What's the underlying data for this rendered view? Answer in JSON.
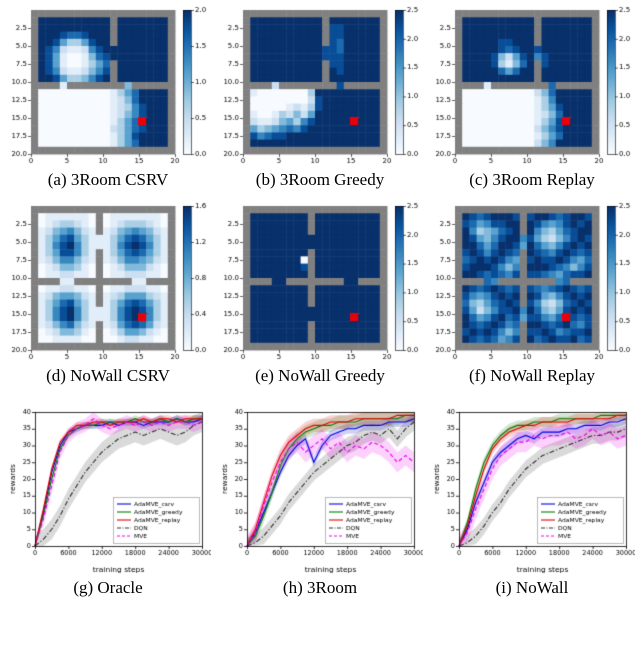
{
  "style": {
    "colormap": "Blues",
    "wall_color": "#808080",
    "goal_color": "#e8000b",
    "accent_blue": "#0000dd",
    "accent_green": "#007f00",
    "accent_red": "#e60000",
    "accent_black": "#303030",
    "accent_magenta": "#ee00ee"
  },
  "chart_data": [
    {
      "id": "a",
      "type": "heatmap",
      "caption": "(a) 3Room CSRV",
      "vmax": 2.0,
      "colorbar_ticks": [
        "2.0",
        "1.5",
        "1.0",
        "0.5",
        "0.0"
      ],
      "x_ticks": [
        0,
        5,
        10,
        15,
        20
      ],
      "y_ticks": [
        "2.5",
        "5.0",
        "7.5",
        "10.0",
        "12.5",
        "15.0",
        "17.5",
        "20.0"
      ],
      "goal_cell": {
        "x": 15,
        "y": 15
      },
      "grid": [
        "####################",
        "#9999999999#9999999#",
        "#9999999999#9999999#",
        "#9998778999#9999999#",
        "#9985335899#9999999#",
        "#986211268999999999#",
        "#985100147899999999#",
        "#9851001357#9999999#",
        "#9862112468#9999999#",
        "#9985334689#9999999#",
        "####1########4######",
        "#000000000013579999#",
        "#000000000012479999#",
        "#000000000012368999#",
        "#000000000012468999#",
        "#00000000001357R999#",
        "#000000000023578999#",
        "#000000000013589999#",
        "#000000000013579999#",
        "####################"
      ]
    },
    {
      "id": "b",
      "type": "heatmap",
      "caption": "(b) 3Room Greedy",
      "vmax": 2.5,
      "colorbar_ticks": [
        "2.5",
        "2.0",
        "1.5",
        "1.0",
        "0.5",
        "0.0"
      ],
      "x_ticks": [
        0,
        5,
        10,
        15,
        20
      ],
      "y_ticks": [
        "2.5",
        "5.0",
        "7.5",
        "10.0",
        "12.5",
        "15.0",
        "17.5",
        "20.0"
      ],
      "goal_cell": {
        "x": 15,
        "y": 15
      },
      "grid": [
        "####################",
        "#9999999999#9999999#",
        "#9999999999#8899999#",
        "#9999999999#8899999#",
        "#9999999999#8799999#",
        "#999999999988799999#",
        "#999999999988899999#",
        "#9999999999#8899999#",
        "#9999999999#9899999#",
        "#9999999999#9999999#",
        "####2########8######",
        "#100000003999999999#",
        "#000000002899999999#",
        "#000001213899999999#",
        "#100132425999999999#",
        "#21124536899999R999#",
        "#534567689999999999#",
        "#867889999999999999#",
        "#999999999999999999#",
        "####################"
      ]
    },
    {
      "id": "c",
      "type": "heatmap",
      "caption": "(c) 3Room Replay",
      "vmax": 2.5,
      "colorbar_ticks": [
        "2.5",
        "2.0",
        "1.5",
        "1.0",
        "0.5",
        "0.0"
      ],
      "x_ticks": [
        0,
        5,
        10,
        15,
        20
      ],
      "y_ticks": [
        "2.5",
        "5.0",
        "7.5",
        "10.0",
        "12.5",
        "15.0",
        "17.5",
        "20.0"
      ],
      "goal_cell": {
        "x": 15,
        "y": 15
      },
      "grid": [
        "####################",
        "#9999999999#9999999#",
        "#9999999999#9999999#",
        "#9999999999#9999999#",
        "#9999988999#9999999#",
        "#999998789989999999#",
        "#999984258968999999#",
        "#9999831479#8999999#",
        "#9999975799#9999999#",
        "#9999999999#9999999#",
        "####1########7######",
        "#000000000024799999#",
        "#000000000013699999#",
        "#000000000013589999#",
        "#000000000012479999#",
        "#00000000001358R999#",
        "#000000000024689999#",
        "#000000000013579999#",
        "#000000000024699999#",
        "####################"
      ]
    },
    {
      "id": "d",
      "type": "heatmap",
      "caption": "(d) NoWall CSRV",
      "vmax": 1.6,
      "colorbar_ticks": [
        "1.6",
        "1.2",
        "0.8",
        "0.4",
        "0.0"
      ],
      "x_ticks": [
        0,
        5,
        10,
        15,
        20
      ],
      "y_ticks": [
        "2.5",
        "5.0",
        "7.5",
        "10.0",
        "12.5",
        "15.0",
        "17.5",
        "20.0"
      ],
      "goal_cell": {
        "x": 15,
        "y": 15
      },
      "grid": [
        "####################",
        "#01111110#011111110#",
        "#01233210#012333210#",
        "#12456421#124565421#",
        "#135785311135787531#",
        "#136896311136898631#",
        "#13588631#135787531#",
        "#12466421#124665421#",
        "#01244310#012444210#",
        "#01122110#011222110#",
        "####11########11####",
        "#01122110#011222110#",
        "#12455421#123555321#",
        "#13578531#135787531#",
        "#136896311136898631#",
        "#13689631113689R631#",
        "#12467421#125787521#",
        "#01244310#013554210#",
        "#00111100#001221100#",
        "####################"
      ]
    },
    {
      "id": "e",
      "type": "heatmap",
      "caption": "(e) NoWall Greedy",
      "vmax": 2.5,
      "colorbar_ticks": [
        "2.5",
        "2.0",
        "1.5",
        "1.0",
        "0.5",
        "0.0"
      ],
      "x_ticks": [
        0,
        5,
        10,
        15,
        20
      ],
      "y_ticks": [
        "2.5",
        "5.0",
        "7.5",
        "10.0",
        "12.5",
        "15.0",
        "17.5",
        "20.0"
      ],
      "goal_cell": {
        "x": 15,
        "y": 15
      },
      "grid": [
        "####################",
        "#99999999#999999999#",
        "#99999999#999999999#",
        "#99999999#999999999#",
        "#999999999999999999#",
        "#999999999999999999#",
        "#99999999#999999999#",
        "#99999990#999999999#",
        "#99999998#999999999#",
        "#99999999#999999999#",
        "####99########99####",
        "#99999999#999999999#",
        "#99999999#999999999#",
        "#99999999#999999999#",
        "#999999999999999999#",
        "#99999999999999R999#",
        "#99999999#999999999#",
        "#99999999#999999999#",
        "#99999999#999999999#",
        "####################"
      ]
    },
    {
      "id": "f",
      "type": "heatmap",
      "caption": "(f) NoWall Replay",
      "vmax": 2.5,
      "colorbar_ticks": [
        "2.5",
        "2.0",
        "1.5",
        "1.0",
        "0.5",
        "0.0"
      ],
      "x_ticks": [
        0,
        5,
        10,
        15,
        20
      ],
      "y_ticks": [
        "2.5",
        "5.0",
        "7.5",
        "10.0",
        "12.5",
        "15.0",
        "17.5",
        "20.0"
      ],
      "goal_cell": {
        "x": 15,
        "y": 15
      },
      "grid": [
        "####################",
        "#98789998#899878998#",
        "#87568899#986568989#",
        "#96345789#964357899#",
        "#985468996853246898#",
        "#997579985975468989#",
        "#89868987#987689878#",
        "#78989865#898898657#",
        "#89998646#999876468#",
        "#99878768#887657889#",
        "####76########67####",
        "#98789878#876789878#",
        "#86568989#985468989#",
        "#74357898#863247898#",
        "#852468896974358989#",
        "#97568978588657R878#",
        "#98789867#998789768#",
        "#89898646#889867889#",
        "#98787568#978988978#",
        "####################"
      ]
    },
    {
      "id": "g",
      "type": "line",
      "caption": "(g) Oracle",
      "xlabel": "training steps",
      "ylabel": "rewards",
      "xlim": [
        0,
        30000
      ],
      "ylim": [
        0,
        40
      ],
      "x_ticks": [
        0,
        6000,
        12000,
        18000,
        24000,
        30000
      ],
      "y_ticks": [
        0,
        5,
        10,
        15,
        20,
        25,
        30,
        35,
        40
      ],
      "x": [
        0,
        1500,
        3000,
        4500,
        6000,
        7500,
        9000,
        10500,
        12000,
        13500,
        15000,
        16500,
        18000,
        19500,
        21000,
        22500,
        24000,
        25500,
        27000,
        28500,
        30000
      ],
      "series": [
        {
          "name": "AdaMVE_csrv",
          "color": "#0000dd",
          "dash": "solid",
          "band": 1,
          "values": [
            0,
            10,
            22,
            30,
            34,
            35,
            36,
            36,
            36,
            37,
            36,
            37,
            37,
            36,
            37,
            37,
            37,
            38,
            37,
            37,
            38
          ]
        },
        {
          "name": "AdaMVE_greedy",
          "color": "#007f00",
          "dash": "solid",
          "band": 1,
          "values": [
            0,
            9,
            20,
            29,
            33,
            35,
            36,
            36,
            37,
            37,
            37,
            37,
            38,
            37,
            37,
            38,
            37,
            38,
            37,
            38,
            38
          ]
        },
        {
          "name": "AdaMVE_replay",
          "color": "#e60000",
          "dash": "solid",
          "band": 1,
          "values": [
            0,
            11,
            23,
            31,
            34,
            36,
            36,
            37,
            37,
            36,
            37,
            37,
            37,
            38,
            37,
            38,
            38,
            37,
            38,
            38,
            38
          ]
        },
        {
          "name": "DQN",
          "color": "#303030",
          "dash": "dashdot",
          "band": 3,
          "values": [
            0,
            2,
            5,
            9,
            14,
            18,
            22,
            25,
            28,
            30,
            32,
            33,
            34,
            33,
            34,
            35,
            34,
            33,
            34,
            36,
            37
          ]
        },
        {
          "name": "MVE",
          "color": "#ee00ee",
          "dash": "dashed",
          "band": 2,
          "values": [
            0,
            8,
            18,
            28,
            33,
            35,
            36,
            38,
            36,
            35,
            36,
            37,
            36,
            37,
            36,
            37,
            36,
            37,
            37,
            36,
            37
          ]
        }
      ]
    },
    {
      "id": "h",
      "type": "line",
      "caption": "(h) 3Room",
      "xlabel": "training steps",
      "ylabel": "rewards",
      "xlim": [
        0,
        30000
      ],
      "ylim": [
        0,
        40
      ],
      "x_ticks": [
        0,
        6000,
        12000,
        18000,
        24000,
        30000
      ],
      "y_ticks": [
        0,
        5,
        10,
        15,
        20,
        25,
        30,
        35,
        40
      ],
      "x": [
        0,
        1500,
        3000,
        4500,
        6000,
        7500,
        9000,
        10500,
        12000,
        13500,
        15000,
        16500,
        18000,
        19500,
        21000,
        22500,
        24000,
        25500,
        27000,
        28500,
        30000
      ],
      "series": [
        {
          "name": "AdaMVE_csrv",
          "color": "#0000dd",
          "dash": "solid",
          "band": 1.5,
          "values": [
            0,
            4,
            10,
            16,
            22,
            27,
            30,
            32,
            25,
            30,
            33,
            34,
            35,
            35,
            36,
            36,
            36,
            37,
            37,
            37,
            38
          ]
        },
        {
          "name": "AdaMVE_greedy",
          "color": "#007f00",
          "dash": "solid",
          "band": 2,
          "values": [
            0,
            3,
            9,
            16,
            24,
            29,
            32,
            34,
            35,
            36,
            36,
            37,
            37,
            37,
            38,
            38,
            38,
            38,
            38,
            39,
            39
          ]
        },
        {
          "name": "AdaMVE_replay",
          "color": "#e60000",
          "dash": "solid",
          "band": 2,
          "values": [
            0,
            5,
            13,
            21,
            27,
            31,
            33,
            35,
            36,
            36,
            37,
            37,
            37,
            38,
            38,
            38,
            38,
            38,
            39,
            39,
            39
          ]
        },
        {
          "name": "DQN",
          "color": "#303030",
          "dash": "dashdot",
          "band": 2.5,
          "values": [
            0,
            1,
            3,
            6,
            9,
            13,
            16,
            19,
            22,
            24,
            26,
            28,
            30,
            31,
            33,
            34,
            33,
            35,
            32,
            35,
            37
          ]
        },
        {
          "name": "MVE",
          "color": "#ee00ee",
          "dash": "dashed",
          "band": 3,
          "values": [
            0,
            4,
            12,
            19,
            25,
            29,
            31,
            28,
            30,
            32,
            29,
            31,
            28,
            30,
            29,
            31,
            30,
            28,
            25,
            27,
            25
          ]
        }
      ]
    },
    {
      "id": "i",
      "type": "line",
      "caption": "(i) NoWall",
      "xlabel": "training steps",
      "ylabel": "rewards",
      "xlim": [
        0,
        30000
      ],
      "ylim": [
        0,
        40
      ],
      "x_ticks": [
        0,
        6000,
        12000,
        18000,
        24000,
        30000
      ],
      "y_ticks": [
        0,
        5,
        10,
        15,
        20,
        25,
        30,
        35,
        40
      ],
      "x": [
        0,
        1500,
        3000,
        4500,
        6000,
        7500,
        9000,
        10500,
        12000,
        13500,
        15000,
        16500,
        18000,
        19500,
        21000,
        22500,
        24000,
        25500,
        27000,
        28500,
        30000
      ],
      "series": [
        {
          "name": "AdaMVE_csrv",
          "color": "#0000dd",
          "dash": "solid",
          "band": 1.5,
          "values": [
            0,
            5,
            13,
            19,
            25,
            28,
            30,
            32,
            33,
            32,
            34,
            34,
            34,
            35,
            35,
            36,
            36,
            36,
            37,
            37,
            38
          ]
        },
        {
          "name": "AdaMVE_greedy",
          "color": "#007f00",
          "dash": "solid",
          "band": 1.5,
          "values": [
            0,
            7,
            17,
            25,
            30,
            33,
            35,
            36,
            36,
            37,
            37,
            37,
            38,
            38,
            38,
            38,
            38,
            39,
            39,
            39,
            39
          ]
        },
        {
          "name": "AdaMVE_replay",
          "color": "#e60000",
          "dash": "solid",
          "band": 1.5,
          "values": [
            0,
            6,
            15,
            23,
            29,
            32,
            34,
            35,
            36,
            36,
            37,
            37,
            37,
            37,
            38,
            38,
            38,
            38,
            38,
            39,
            39
          ]
        },
        {
          "name": "DQN",
          "color": "#303030",
          "dash": "dashdot",
          "band": 2.5,
          "values": [
            0,
            1,
            3,
            6,
            10,
            13,
            17,
            20,
            23,
            25,
            27,
            28,
            29,
            30,
            31,
            32,
            33,
            33,
            34,
            34,
            35
          ]
        },
        {
          "name": "MVE",
          "color": "#ee00ee",
          "dash": "dashed",
          "band": 3,
          "values": [
            0,
            4,
            11,
            17,
            23,
            27,
            29,
            31,
            31,
            33,
            32,
            33,
            33,
            34,
            32,
            33,
            35,
            33,
            34,
            32,
            33
          ]
        }
      ]
    }
  ]
}
